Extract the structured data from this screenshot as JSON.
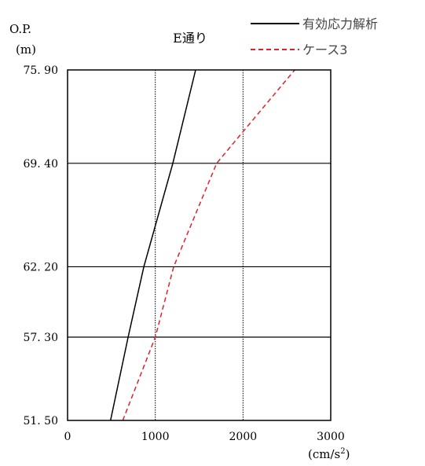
{
  "chart_data": {
    "type": "line",
    "title": "E通り",
    "ylabel_top": "O.P.",
    "ylabel_unit": "(m)",
    "xlabel_unit": "(cm/s",
    "xlabel_unit_sup": "2",
    "xlabel_unit_close": ")",
    "xlim": [
      0,
      3000
    ],
    "ylim": [
      51.5,
      75.9
    ],
    "x_ticks": [
      0,
      1000,
      2000,
      3000
    ],
    "x_tick_labels": [
      "0",
      "1000",
      "2000",
      "3000"
    ],
    "y_ticks": [
      75.9,
      69.4,
      62.2,
      57.3,
      51.5
    ],
    "y_tick_labels": [
      "75. 90",
      "69. 40",
      "62. 20",
      "57. 30",
      "51. 50"
    ],
    "grid": {
      "vertical": "dotted",
      "horizontal": "solid"
    },
    "legend_position": "top-right",
    "series": [
      {
        "name": "有効応力解析",
        "color": "#000000",
        "style": "solid",
        "points": [
          [
            490,
            51.5
          ],
          [
            690,
            57.3
          ],
          [
            870,
            62.2
          ],
          [
            1200,
            69.4
          ],
          [
            1460,
            75.9
          ]
        ]
      },
      {
        "name": "ケース3",
        "color": "#e0202a",
        "style": "dashed",
        "points": [
          [
            630,
            51.5
          ],
          [
            1000,
            57.3
          ],
          [
            1210,
            62.2
          ],
          [
            1700,
            69.4
          ],
          [
            2000,
            71.6
          ],
          [
            2590,
            75.9
          ]
        ]
      }
    ]
  }
}
